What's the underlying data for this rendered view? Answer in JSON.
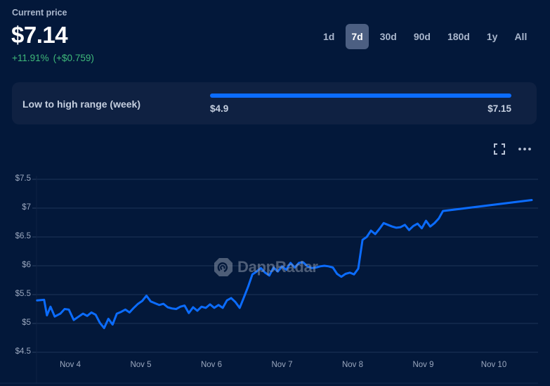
{
  "header": {
    "current_price_label": "Current price",
    "price": "$7.14",
    "change_percent": "+11.91%",
    "change_value": "(+$0.759)"
  },
  "time_ranges": [
    {
      "label": "1d",
      "active": false
    },
    {
      "label": "7d",
      "active": true
    },
    {
      "label": "30d",
      "active": false
    },
    {
      "label": "90d",
      "active": false
    },
    {
      "label": "180d",
      "active": false
    },
    {
      "label": "1y",
      "active": false
    },
    {
      "label": "All",
      "active": false
    }
  ],
  "range_card": {
    "label": "Low to high range (week)",
    "low": "$4.9",
    "high": "$7.15"
  },
  "toolbar": {
    "fullscreen_icon": "fullscreen-icon",
    "more_icon": "more-horizontal-icon"
  },
  "watermark": {
    "text": "DappRadar"
  },
  "colors": {
    "background": "#03183a",
    "card": "#0f2142",
    "line": "#0b6cff",
    "positive": "#3fb97a",
    "grid": "#1e3358"
  },
  "chart_data": {
    "type": "line",
    "title": "",
    "xlabel": "",
    "ylabel": "",
    "x_tick_labels": [
      "Nov 4",
      "Nov 5",
      "Nov 6",
      "Nov 7",
      "Nov 8",
      "Nov 9",
      "Nov 10"
    ],
    "y_tick_labels": [
      "$7.5",
      "$7",
      "$6.5",
      "$6",
      "$5.5",
      "$5",
      "$4.5"
    ],
    "ylim": [
      4.5,
      7.5
    ],
    "grid": true,
    "legend": "none",
    "series": [
      {
        "name": "Price (USD)",
        "x_day_offset": [
          -0.47,
          -0.37,
          -0.33,
          -0.28,
          -0.22,
          -0.14,
          -0.08,
          -0.02,
          0.05,
          0.12,
          0.18,
          0.24,
          0.3,
          0.36,
          0.42,
          0.48,
          0.54,
          0.6,
          0.66,
          0.72,
          0.78,
          0.84,
          0.9,
          0.96,
          1.02,
          1.08,
          1.14,
          1.2,
          1.26,
          1.32,
          1.38,
          1.44,
          1.5,
          1.56,
          1.62,
          1.68,
          1.74,
          1.8,
          1.86,
          1.92,
          1.98,
          2.04,
          2.1,
          2.16,
          2.22,
          2.28,
          2.34,
          2.4,
          2.46,
          2.52,
          2.58,
          2.64,
          2.7,
          2.76,
          2.82,
          2.88,
          2.94,
          3.0,
          3.06,
          3.12,
          3.18,
          3.24,
          3.3,
          3.36,
          3.42,
          3.48,
          3.54,
          3.6,
          3.66,
          3.72,
          3.78,
          3.84,
          3.9,
          3.96,
          4.02,
          4.08,
          4.14,
          4.2,
          4.26,
          4.32,
          4.38,
          4.44,
          4.5,
          4.56,
          4.62,
          4.68,
          4.74,
          4.8,
          4.86,
          4.92,
          4.98,
          5.04,
          5.1,
          5.16,
          5.22,
          5.28,
          5.34,
          5.4,
          5.46,
          5.52,
          5.58,
          5.64,
          5.7,
          5.76,
          5.82,
          5.88,
          5.94,
          6.0,
          6.06,
          6.12,
          6.18,
          6.24,
          6.3,
          6.36,
          6.42,
          6.48,
          6.54,
          6.56
        ],
        "values": [
          5.4,
          5.41,
          5.14,
          5.29,
          5.12,
          5.17,
          5.25,
          5.24,
          5.06,
          5.12,
          5.17,
          5.13,
          5.19,
          5.15,
          5.01,
          4.92,
          5.08,
          4.98,
          5.17,
          5.2,
          5.24,
          5.19,
          5.27,
          5.34,
          5.39,
          5.48,
          5.38,
          5.35,
          5.32,
          5.34,
          5.28,
          5.26,
          5.25,
          5.29,
          5.31,
          5.18,
          5.28,
          5.22,
          5.29,
          5.27,
          5.33,
          5.27,
          5.32,
          5.27,
          5.4,
          5.44,
          5.37,
          5.27,
          5.45,
          5.64,
          5.85,
          5.9,
          5.96,
          5.88,
          5.83,
          5.97,
          5.9,
          5.99,
          5.93,
          6.05,
          5.97,
          6.05,
          6.06,
          5.99,
          5.96,
          5.97,
          5.99,
          6.0,
          5.99,
          5.97,
          5.86,
          5.81,
          5.86,
          5.88,
          5.85,
          5.95,
          6.45,
          6.5,
          6.61,
          6.55,
          6.64,
          6.74,
          6.71,
          6.68,
          6.66,
          6.67,
          6.71,
          6.62,
          6.69,
          6.73,
          6.65,
          6.78,
          6.68,
          6.74,
          6.82,
          6.95,
          7.12,
          7.14,
          7.14,
          7.14,
          7.14,
          7.14,
          7.14,
          7.14,
          7.14,
          7.14,
          7.14,
          7.14,
          7.14,
          7.14,
          7.14,
          7.14,
          7.14,
          7.14,
          7.14,
          7.14,
          7.14,
          7.14
        ]
      }
    ]
  }
}
